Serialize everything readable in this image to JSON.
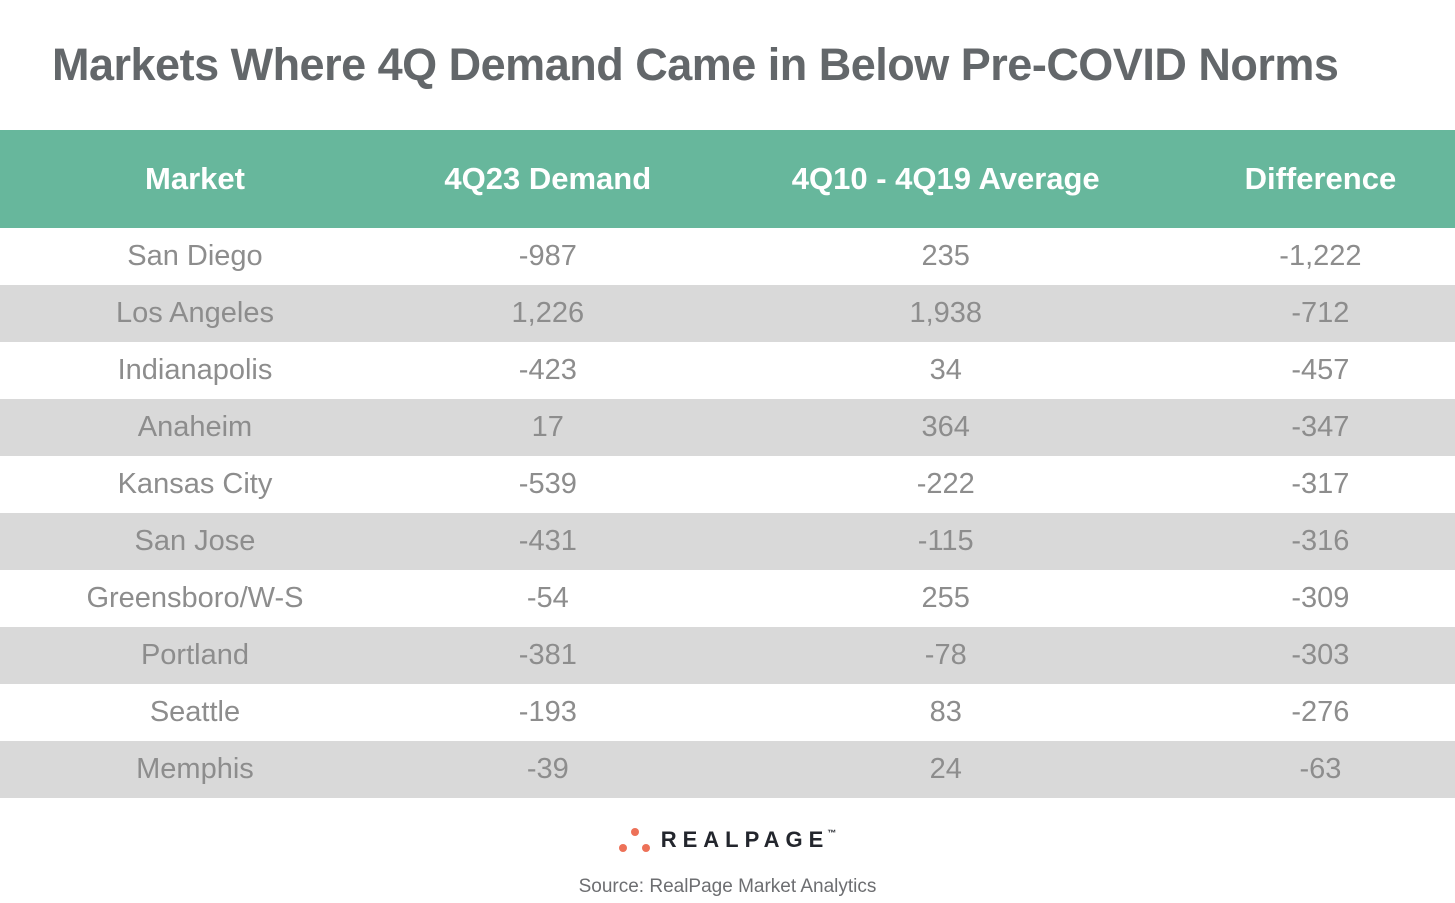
{
  "title": "Markets Where 4Q Demand Came in Below Pre-COVID Norms",
  "table": {
    "columns": [
      "Market",
      "4Q23 Demand",
      "4Q10 - 4Q19 Average",
      "Difference"
    ],
    "rows": [
      {
        "market": "San Diego",
        "demand": "-987",
        "average": "235",
        "difference": "-1,222"
      },
      {
        "market": "Los Angeles",
        "demand": "1,226",
        "average": "1,938",
        "difference": "-712"
      },
      {
        "market": "Indianapolis",
        "demand": "-423",
        "average": "34",
        "difference": "-457"
      },
      {
        "market": "Anaheim",
        "demand": "17",
        "average": "364",
        "difference": "-347"
      },
      {
        "market": "Kansas City",
        "demand": "-539",
        "average": "-222",
        "difference": "-317"
      },
      {
        "market": "San Jose",
        "demand": "-431",
        "average": "-115",
        "difference": "-316"
      },
      {
        "market": "Greensboro/W-S",
        "demand": "-54",
        "average": "255",
        "difference": "-309"
      },
      {
        "market": "Portland",
        "demand": "-381",
        "average": "-78",
        "difference": "-303"
      },
      {
        "market": "Seattle",
        "demand": "-193",
        "average": "83",
        "difference": "-276"
      },
      {
        "market": "Memphis",
        "demand": "-39",
        "average": "24",
        "difference": "-63"
      }
    ]
  },
  "footer": {
    "logo_text": "REALPAGE",
    "logo_trademark": "™",
    "source": "Source: RealPage Market Analytics"
  },
  "colors": {
    "header_bg": "#67b79c",
    "stripe_bg": "#d9d9d9",
    "title_text": "#63676a",
    "cell_text": "#8d8d8d",
    "header_text": "#ffffff",
    "logo_dot": "#ed7158",
    "logo_text": "#23262d"
  },
  "chart_data": {
    "type": "table",
    "title": "Markets Where 4Q Demand Came in Below Pre-COVID Norms",
    "columns": [
      "Market",
      "4Q23 Demand",
      "4Q10 - 4Q19 Average",
      "Difference"
    ],
    "rows": [
      [
        "San Diego",
        -987,
        235,
        -1222
      ],
      [
        "Los Angeles",
        1226,
        1938,
        -712
      ],
      [
        "Indianapolis",
        -423,
        34,
        -457
      ],
      [
        "Anaheim",
        17,
        364,
        -347
      ],
      [
        "Kansas City",
        -539,
        -222,
        -317
      ],
      [
        "San Jose",
        -431,
        -115,
        -316
      ],
      [
        "Greensboro/W-S",
        -54,
        255,
        -309
      ],
      [
        "Portland",
        -381,
        -78,
        -303
      ],
      [
        "Seattle",
        -193,
        83,
        -276
      ],
      [
        "Memphis",
        -39,
        24,
        -63
      ]
    ],
    "source": "Source: RealPage Market Analytics"
  }
}
